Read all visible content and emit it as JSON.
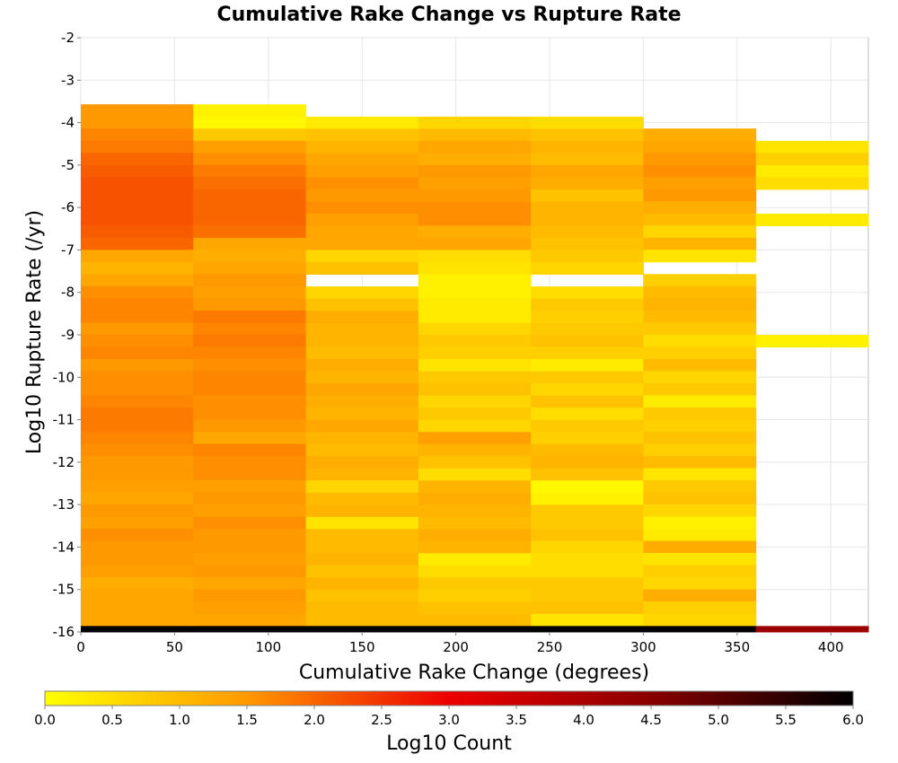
{
  "chart_data": {
    "type": "heatmap",
    "title": "Cumulative Rake Change vs Rupture Rate",
    "xlabel": "Cumulative Rake Change (degrees)",
    "ylabel": "Log10 Rupture Rate (/yr)",
    "xlim": [
      0,
      420
    ],
    "ylim": [
      -16,
      -2
    ],
    "x_ticks": [
      0,
      50,
      100,
      150,
      200,
      250,
      300,
      350,
      400
    ],
    "y_ticks": [
      -2,
      -3,
      -4,
      -5,
      -6,
      -7,
      -8,
      -9,
      -10,
      -11,
      -12,
      -13,
      -14,
      -15,
      -16
    ],
    "x_bin_edges": [
      0,
      60,
      120,
      180,
      240,
      300,
      360,
      420
    ],
    "y_bin_height": 0.2857,
    "grid": true,
    "colorbar": {
      "label": "Log10 Count",
      "range": [
        0,
        6
      ],
      "ticks": [
        "0.0",
        "0.5",
        "1.0",
        "1.5",
        "2.0",
        "2.5",
        "3.0",
        "3.5",
        "4.0",
        "4.5",
        "5.0",
        "5.5",
        "6.0"
      ],
      "colors": [
        "#ffff00",
        "#ff9900",
        "#ee0000",
        "#880000",
        "#000000"
      ]
    },
    "columns": [
      {
        "x_range": [
          0,
          60
        ],
        "y_top": -3.57,
        "values": [
          1.5,
          1.5,
          1.7,
          1.8,
          2.0,
          2.1,
          2.2,
          2.2,
          2.2,
          2.2,
          2.1,
          2.0,
          1.3,
          1.1,
          1.3,
          1.6,
          1.7,
          1.7,
          1.5,
          1.6,
          1.7,
          1.5,
          1.6,
          1.6,
          1.7,
          1.8,
          1.8,
          1.7,
          1.6,
          1.5,
          1.5,
          1.4,
          1.3,
          1.5,
          1.4,
          1.6,
          1.5,
          1.5,
          1.4,
          1.2,
          1.3,
          1.3,
          1.3,
          1.2,
          6.0
        ]
      },
      {
        "x_range": [
          60,
          120
        ],
        "y_top": -3.57,
        "values": [
          0.2,
          0.1,
          0.8,
          1.4,
          1.6,
          1.8,
          1.9,
          2.0,
          2.0,
          2.0,
          1.9,
          1.3,
          1.2,
          1.3,
          1.5,
          1.4,
          1.5,
          1.8,
          1.7,
          1.8,
          1.7,
          1.6,
          1.7,
          1.7,
          1.6,
          1.6,
          1.5,
          1.3,
          1.7,
          1.6,
          1.6,
          1.4,
          1.5,
          1.4,
          1.6,
          1.5,
          1.5,
          1.4,
          1.5,
          1.3,
          1.5,
          1.4,
          1.3,
          1.4,
          6.0
        ]
      },
      {
        "x_range": [
          120,
          180
        ],
        "y_top": -3.86,
        "values": [
          0.3,
          0.9,
          1.1,
          1.3,
          1.4,
          1.6,
          1.5,
          1.6,
          1.4,
          1.3,
          1.3,
          0.6,
          0.9,
          null,
          0.6,
          0.9,
          1.2,
          1.1,
          1.1,
          1.0,
          1.2,
          1.1,
          1.3,
          1.2,
          1.1,
          1.3,
          1.1,
          1.0,
          1.2,
          1.1,
          0.6,
          1.0,
          1.1,
          0.4,
          1.0,
          1.0,
          1.1,
          0.9,
          1.1,
          0.9,
          1.0,
          1.0,
          0.9,
          6.0
        ]
      },
      {
        "x_range": [
          180,
          240
        ],
        "y_top": -3.86,
        "values": [
          0.6,
          1.0,
          1.3,
          1.2,
          1.5,
          1.4,
          1.5,
          1.6,
          1.6,
          1.2,
          1.3,
          0.5,
          0.4,
          0.2,
          0.2,
          0.3,
          0.3,
          0.6,
          0.8,
          0.7,
          0.4,
          0.8,
          0.9,
          0.6,
          0.8,
          0.6,
          1.4,
          1.1,
          0.9,
          0.5,
          1.1,
          1.2,
          1.1,
          1.0,
          1.2,
          1.1,
          0.3,
          0.5,
          0.8,
          0.7,
          0.9,
          1.0,
          0.9,
          6.0
        ]
      },
      {
        "x_range": [
          240,
          300
        ],
        "y_top": -3.86,
        "values": [
          0.5,
          0.9,
          1.1,
          1.0,
          1.3,
          1.2,
          0.9,
          1.1,
          1.1,
          1.0,
          0.9,
          0.8,
          0.6,
          null,
          0.5,
          0.8,
          0.7,
          0.8,
          0.9,
          0.7,
          0.3,
          0.8,
          0.6,
          0.9,
          0.5,
          0.8,
          0.7,
          1.0,
          1.1,
          0.9,
          0.1,
          0.2,
          0.8,
          0.8,
          0.9,
          0.6,
          0.5,
          0.5,
          0.8,
          0.8,
          0.9,
          0.4,
          0.6,
          6.0
        ]
      },
      {
        "x_range": [
          300,
          360
        ],
        "y_top": -4.14,
        "values": [
          1.2,
          1.3,
          1.5,
          1.6,
          1.4,
          1.5,
          1.2,
          1.0,
          0.6,
          1.1,
          0.4,
          null,
          0.7,
          1.0,
          1.1,
          1.0,
          0.8,
          0.5,
          0.7,
          1.0,
          0.6,
          0.8,
          0.3,
          0.8,
          0.7,
          0.9,
          0.7,
          1.0,
          0.4,
          0.8,
          0.9,
          0.6,
          0.2,
          0.3,
          1.2,
          0.4,
          0.7,
          0.6,
          1.2,
          0.7,
          0.6,
          6.0
        ]
      },
      {
        "x_range": [
          360,
          420
        ],
        "y_top": -4.43,
        "values": [
          0.4,
          0.7,
          0.3,
          0.5,
          null,
          null,
          0.3,
          null,
          null,
          null,
          null,
          null,
          null,
          null,
          null,
          null,
          0.2,
          null,
          null,
          null,
          null,
          null,
          null,
          null,
          null,
          null,
          null,
          null,
          null,
          null,
          null,
          null,
          null,
          null,
          null,
          null,
          null,
          null,
          null,
          null,
          4.2
        ]
      }
    ]
  }
}
